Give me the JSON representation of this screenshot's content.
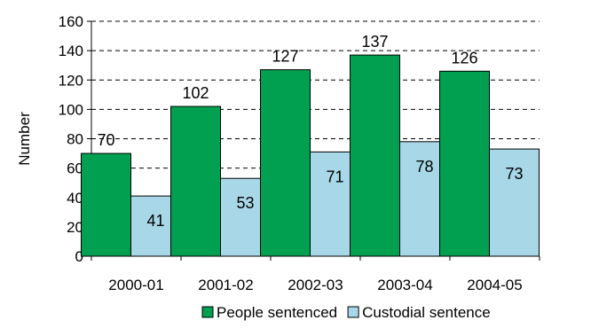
{
  "chart_data": {
    "type": "bar",
    "categories": [
      "2000-01",
      "2001-02",
      "2002-03",
      "2003-04",
      "2004-05"
    ],
    "series": [
      {
        "name": "People sentenced",
        "values": [
          70,
          102,
          127,
          137,
          126
        ],
        "color": "#00A050"
      },
      {
        "name": "Custodial sentence",
        "values": [
          41,
          53,
          71,
          78,
          73
        ],
        "color": "#A8D8E8"
      }
    ],
    "ylabel": "Number",
    "ylim": [
      0,
      160
    ],
    "yticks": [
      0,
      20,
      40,
      60,
      80,
      100,
      120,
      140,
      160
    ],
    "grid": true,
    "legend": "bottom"
  }
}
